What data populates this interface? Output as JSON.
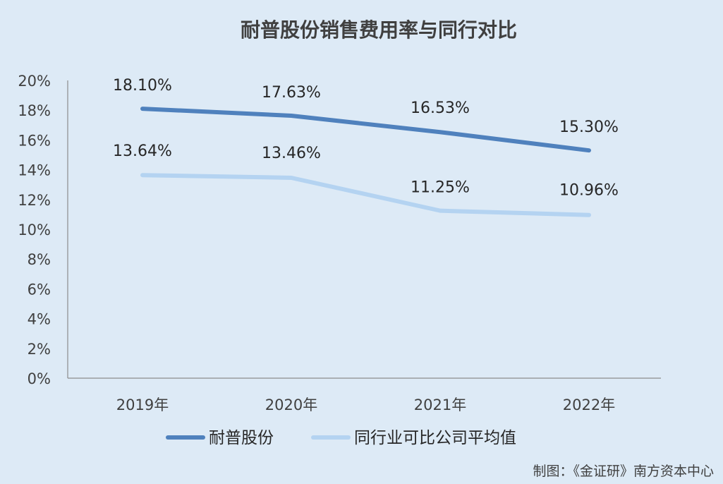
{
  "chart_data": {
    "type": "line",
    "title": "耐普股份销售费用率与同行对比",
    "categories": [
      "2019年",
      "2020年",
      "2021年",
      "2022年"
    ],
    "ylim": [
      0,
      20
    ],
    "ytick_labels": [
      "0%",
      "2%",
      "4%",
      "6%",
      "8%",
      "10%",
      "12%",
      "14%",
      "16%",
      "18%",
      "20%"
    ],
    "grid": false,
    "legend_position": "bottom",
    "series": [
      {
        "name": "耐普股份",
        "values": [
          18.1,
          17.63,
          16.53,
          15.3
        ],
        "labels": [
          "18.10%",
          "17.63%",
          "16.53%",
          "15.30%"
        ],
        "color": "#4f81bd"
      },
      {
        "name": "同行业可比公司平均值",
        "values": [
          13.64,
          13.46,
          11.25,
          10.96
        ],
        "labels": [
          "13.64%",
          "13.46%",
          "11.25%",
          "10.96%"
        ],
        "color": "#b4d3f1"
      }
    ]
  },
  "credit": "制图：《金证研》南方资本中心"
}
